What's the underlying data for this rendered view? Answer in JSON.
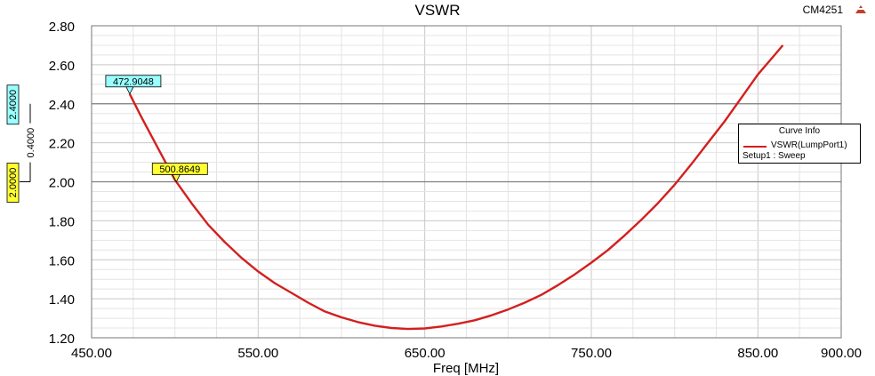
{
  "chart_data": {
    "type": "line",
    "title": "VSWR",
    "xlabel": "Freq [MHz]",
    "ylabel": "",
    "xlim": [
      450,
      900
    ],
    "ylim": [
      1.2,
      2.8
    ],
    "xticks": [
      "450.00",
      "550.00",
      "650.00",
      "750.00",
      "850.00",
      "900.00"
    ],
    "xtick_values": [
      450,
      550,
      650,
      750,
      850,
      900
    ],
    "yticks": [
      "1.20",
      "1.40",
      "1.60",
      "1.80",
      "2.00",
      "2.20",
      "2.40",
      "2.60",
      "2.80"
    ],
    "ytick_values": [
      1.2,
      1.4,
      1.6,
      1.8,
      2.0,
      2.2,
      2.4,
      2.6,
      2.8
    ],
    "grid": true,
    "legend_position": "right",
    "series": [
      {
        "name": "VSWR(LumpPort1)",
        "color": "#d41f1f",
        "x": [
          472.9,
          480,
          490,
          500,
          510,
          520,
          530,
          540,
          550,
          560,
          570,
          580,
          590,
          600,
          610,
          620,
          630,
          640,
          650,
          660,
          670,
          680,
          690,
          700,
          710,
          720,
          730,
          740,
          750,
          760,
          770,
          780,
          790,
          800,
          810,
          820,
          830,
          840,
          850,
          860,
          865
        ],
        "y": [
          2.45,
          2.33,
          2.17,
          2.01,
          1.89,
          1.78,
          1.69,
          1.61,
          1.54,
          1.48,
          1.43,
          1.38,
          1.335,
          1.305,
          1.28,
          1.262,
          1.25,
          1.245,
          1.248,
          1.258,
          1.272,
          1.29,
          1.315,
          1.345,
          1.38,
          1.42,
          1.47,
          1.525,
          1.585,
          1.65,
          1.725,
          1.805,
          1.89,
          1.985,
          2.09,
          2.2,
          2.31,
          2.43,
          2.55,
          2.65,
          2.7
        ]
      }
    ],
    "markers": [
      {
        "label": "472.9048",
        "x": 472.9048,
        "y": 2.45,
        "color": "#99ffff"
      },
      {
        "label": "500.8649",
        "x": 500.8649,
        "y": 2.0,
        "color": "#ffff33"
      }
    ],
    "reference_lines": [
      {
        "y": 2.4,
        "label": "2.4000",
        "color": "#99ffff"
      },
      {
        "y": 2.0,
        "label": "2.0000",
        "color": "#ffff33"
      }
    ],
    "delta_label": "0.4000",
    "legend": {
      "title": "Curve Info",
      "entry": "VSWR(LumpPort1)",
      "setup": "Setup1 : Sweep"
    },
    "design_label": "CM4251"
  }
}
